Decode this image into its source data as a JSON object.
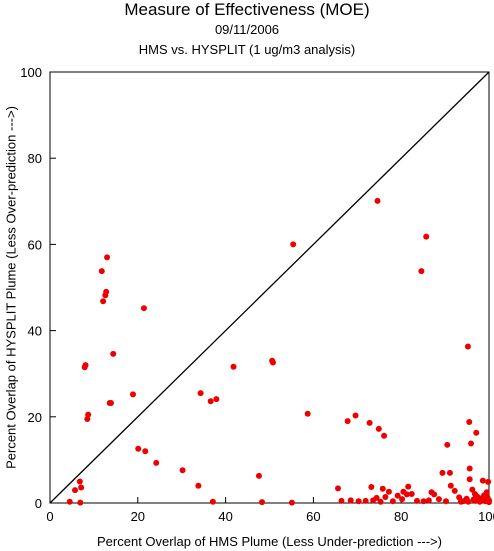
{
  "chart_data": {
    "type": "scatter",
    "title": "Measure of Effectiveness (MOE)",
    "subtitle": "09/11/2006",
    "subtitle2": "HMS vs. HYSPLIT  (1 ug/m3 analysis)",
    "xlabel": "Percent Overlap of HMS Plume (Less Under-prediction --->)",
    "ylabel": "Percent Overlap of HYSPLIT Plume (Less Over-prediction --->)",
    "xlim": [
      0,
      100
    ],
    "ylim": [
      0,
      100
    ],
    "xticks": [
      "0",
      "20",
      "40",
      "60",
      "80",
      "100"
    ],
    "yticks": [
      "0",
      "20",
      "40",
      "60",
      "80",
      "100"
    ],
    "diagonal": true,
    "grid": false,
    "point_color": "#ee0000",
    "points": [
      [
        4.5,
        0.3
      ],
      [
        5.7,
        3.0
      ],
      [
        6.8,
        5.0
      ],
      [
        7.1,
        3.6
      ],
      [
        6.9,
        0.1
      ],
      [
        7.9,
        31.5
      ],
      [
        8.1,
        32.0
      ],
      [
        8.5,
        19.5
      ],
      [
        8.7,
        20.5
      ],
      [
        11.8,
        53.8
      ],
      [
        12.1,
        46.8
      ],
      [
        12.6,
        48.2
      ],
      [
        12.8,
        49.0
      ],
      [
        13.0,
        57.0
      ],
      [
        13.6,
        23.2
      ],
      [
        13.9,
        23.2
      ],
      [
        14.4,
        34.6
      ],
      [
        18.9,
        25.2
      ],
      [
        20.1,
        12.6
      ],
      [
        21.4,
        45.2
      ],
      [
        21.7,
        12.0
      ],
      [
        24.2,
        9.3
      ],
      [
        30.2,
        7.6
      ],
      [
        33.8,
        4.0
      ],
      [
        34.3,
        25.5
      ],
      [
        36.6,
        23.6
      ],
      [
        37.1,
        0.3
      ],
      [
        37.9,
        24.1
      ],
      [
        41.8,
        31.6
      ],
      [
        47.6,
        6.3
      ],
      [
        48.3,
        0.2
      ],
      [
        50.6,
        33.0
      ],
      [
        50.8,
        32.6
      ],
      [
        55.1,
        0.1
      ],
      [
        55.4,
        60.0
      ],
      [
        58.7,
        20.7
      ],
      [
        65.6,
        3.4
      ],
      [
        66.4,
        0.5
      ],
      [
        67.8,
        19.0
      ],
      [
        68.5,
        0.6
      ],
      [
        69.6,
        20.3
      ],
      [
        70.3,
        0.4
      ],
      [
        71.9,
        0.5
      ],
      [
        72.8,
        18.6
      ],
      [
        73.2,
        3.7
      ],
      [
        73.6,
        0.6
      ],
      [
        74.4,
        1.2
      ],
      [
        74.6,
        70.1
      ],
      [
        74.9,
        17.2
      ],
      [
        75.3,
        0.3
      ],
      [
        75.8,
        3.3
      ],
      [
        76.1,
        15.6
      ],
      [
        76.4,
        1.4
      ],
      [
        77.2,
        2.6
      ],
      [
        78.1,
        0.4
      ],
      [
        79.2,
        1.7
      ],
      [
        80.2,
        0.9
      ],
      [
        80.5,
        2.6
      ],
      [
        81.3,
        2.0
      ],
      [
        81.6,
        3.8
      ],
      [
        82.4,
        2.1
      ],
      [
        83.6,
        0.5
      ],
      [
        84.6,
        53.8
      ],
      [
        85.1,
        0.4
      ],
      [
        85.7,
        61.8
      ],
      [
        86.3,
        0.6
      ],
      [
        86.9,
        2.5
      ],
      [
        87.5,
        2.0
      ],
      [
        88.6,
        0.9
      ],
      [
        89.4,
        7.0
      ],
      [
        90.2,
        0.4
      ],
      [
        90.5,
        13.5
      ],
      [
        91.1,
        7.0
      ],
      [
        91.3,
        4.0
      ],
      [
        92.2,
        2.8
      ],
      [
        93.6,
        0.3
      ],
      [
        94.0,
        0.4
      ],
      [
        94.5,
        0.5
      ],
      [
        94.9,
        1.0
      ],
      [
        95.2,
        36.3
      ],
      [
        95.3,
        0.3
      ],
      [
        95.5,
        18.8
      ],
      [
        95.6,
        8.0
      ],
      [
        95.6,
        5.5
      ],
      [
        95.9,
        13.8
      ],
      [
        96.2,
        3.1
      ],
      [
        96.5,
        0.8
      ],
      [
        96.9,
        0.5
      ],
      [
        97.1,
        16.3
      ],
      [
        97.3,
        1.5
      ],
      [
        97.6,
        0.9
      ],
      [
        97.9,
        0.3
      ],
      [
        98.3,
        1.1
      ],
      [
        98.6,
        5.2
      ],
      [
        98.9,
        1.8
      ],
      [
        99.2,
        0.4
      ],
      [
        99.5,
        2.5
      ],
      [
        99.7,
        1.2
      ],
      [
        99.8,
        4.9
      ],
      [
        100.0,
        0.6
      ],
      [
        100.0,
        0.2
      ],
      [
        99.4,
        0.9
      ],
      [
        96.8,
        2.1
      ],
      [
        93.2,
        1.3
      ]
    ]
  }
}
